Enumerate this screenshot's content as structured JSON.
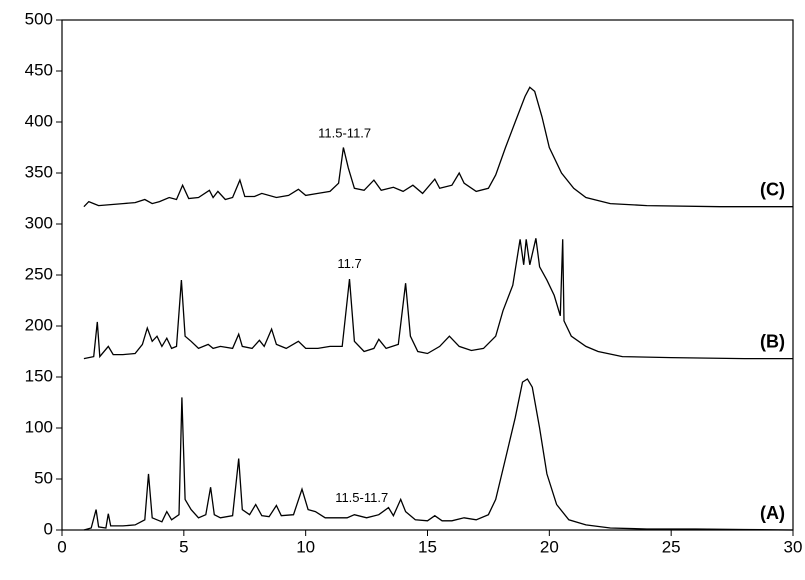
{
  "chart_data": {
    "type": "line",
    "xlim": [
      0,
      30
    ],
    "xticks": [
      0,
      5,
      10,
      15,
      20,
      25,
      30
    ],
    "ylim": [
      0,
      500
    ],
    "yticks": [
      0,
      50,
      100,
      150,
      200,
      250,
      300,
      350,
      400,
      450,
      500
    ],
    "grid": false,
    "annotations": [
      {
        "text": "11.5-11.7",
        "x": 11.6,
        "y": 388
      },
      {
        "text": "11.7",
        "x": 11.8,
        "y": 260
      },
      {
        "text": "11.5-11.7",
        "x": 12.3,
        "y": 31
      }
    ],
    "series": [
      {
        "name": "(A)",
        "color": "#000000",
        "x": [
          0.9,
          1.2,
          1.4,
          1.5,
          1.8,
          1.9,
          2.0,
          2.5,
          3.0,
          3.4,
          3.55,
          3.7,
          3.9,
          4.1,
          4.3,
          4.5,
          4.8,
          4.92,
          5.05,
          5.3,
          5.6,
          5.9,
          6.1,
          6.25,
          6.5,
          7.0,
          7.25,
          7.4,
          7.7,
          7.95,
          8.2,
          8.5,
          8.8,
          9.0,
          9.5,
          9.85,
          10.1,
          10.4,
          10.8,
          11.2,
          11.7,
          12.0,
          12.5,
          13.0,
          13.4,
          13.6,
          13.9,
          14.1,
          14.5,
          15.0,
          15.3,
          15.6,
          16.0,
          16.5,
          17.0,
          17.5,
          17.8,
          18.2,
          18.6,
          18.9,
          19.1,
          19.3,
          19.6,
          19.9,
          20.3,
          20.8,
          21.5,
          22.5,
          24,
          26,
          28,
          30
        ],
        "values": [
          0,
          2,
          20,
          3,
          2,
          16,
          4,
          4,
          5,
          10,
          55,
          12,
          10,
          8,
          18,
          10,
          15,
          130,
          30,
          20,
          12,
          15,
          42,
          15,
          12,
          14,
          70,
          20,
          15,
          25,
          14,
          13,
          24,
          14,
          15,
          40,
          20,
          18,
          12,
          12,
          12,
          15,
          12,
          15,
          22,
          14,
          30,
          18,
          10,
          9,
          14,
          9,
          9,
          12,
          10,
          15,
          30,
          70,
          110,
          145,
          148,
          140,
          100,
          55,
          25,
          10,
          5,
          2,
          1,
          1,
          0.5,
          0
        ]
      },
      {
        "name": "(B)",
        "color": "#000000",
        "x": [
          0.9,
          1.3,
          1.45,
          1.55,
          1.9,
          2.1,
          2.5,
          3.0,
          3.3,
          3.5,
          3.7,
          3.9,
          4.1,
          4.3,
          4.5,
          4.7,
          4.9,
          5.05,
          5.3,
          5.6,
          6.0,
          6.2,
          6.5,
          7.0,
          7.25,
          7.4,
          7.8,
          8.1,
          8.3,
          8.6,
          8.8,
          9.2,
          9.7,
          10.0,
          10.5,
          11.0,
          11.5,
          11.8,
          12.0,
          12.4,
          12.8,
          13.0,
          13.3,
          13.8,
          14.1,
          14.3,
          14.6,
          15.0,
          15.5,
          15.9,
          16.3,
          16.8,
          17.3,
          17.8,
          18.1,
          18.5,
          18.8,
          18.95,
          19.05,
          19.2,
          19.45,
          19.6,
          19.9,
          20.2,
          20.45,
          20.55,
          20.6,
          20.9,
          21.5,
          22,
          23,
          25,
          28,
          30
        ],
        "values": [
          168,
          170,
          204,
          170,
          180,
          172,
          172,
          173,
          182,
          198,
          185,
          190,
          180,
          188,
          178,
          180,
          245,
          190,
          185,
          178,
          182,
          178,
          180,
          178,
          192,
          180,
          178,
          186,
          180,
          197,
          182,
          178,
          185,
          178,
          178,
          180,
          180,
          246,
          185,
          175,
          178,
          187,
          178,
          182,
          242,
          190,
          175,
          173,
          180,
          190,
          180,
          176,
          178,
          190,
          215,
          240,
          285,
          260,
          285,
          260,
          286,
          258,
          245,
          230,
          210,
          285,
          205,
          190,
          180,
          175,
          170,
          169,
          168,
          168
        ]
      },
      {
        "name": "(C)",
        "color": "#000000",
        "x": [
          0.9,
          1.1,
          1.3,
          1.5,
          2.0,
          2.5,
          3.0,
          3.4,
          3.7,
          4.0,
          4.4,
          4.7,
          4.95,
          5.2,
          5.6,
          6.05,
          6.2,
          6.4,
          6.7,
          7.0,
          7.3,
          7.5,
          7.9,
          8.2,
          8.8,
          9.3,
          9.7,
          10.0,
          10.5,
          11.0,
          11.35,
          11.55,
          11.75,
          12.0,
          12.4,
          12.8,
          13.1,
          13.6,
          14.0,
          14.4,
          14.8,
          15.3,
          15.5,
          16.0,
          16.3,
          16.5,
          17.0,
          17.5,
          17.8,
          18.2,
          18.6,
          19.0,
          19.2,
          19.4,
          19.7,
          20.0,
          20.5,
          21.0,
          21.5,
          22.5,
          24,
          27,
          30
        ],
        "values": [
          317,
          322,
          320,
          318,
          319,
          320,
          321,
          324,
          320,
          322,
          326,
          324,
          338,
          325,
          326,
          333,
          326,
          332,
          324,
          326,
          343,
          327,
          327,
          330,
          326,
          328,
          334,
          328,
          330,
          332,
          340,
          375,
          355,
          335,
          333,
          343,
          333,
          336,
          332,
          338,
          330,
          344,
          335,
          338,
          350,
          340,
          332,
          335,
          348,
          375,
          400,
          425,
          434,
          430,
          405,
          375,
          350,
          335,
          326,
          320,
          318,
          317,
          317
        ]
      }
    ]
  }
}
